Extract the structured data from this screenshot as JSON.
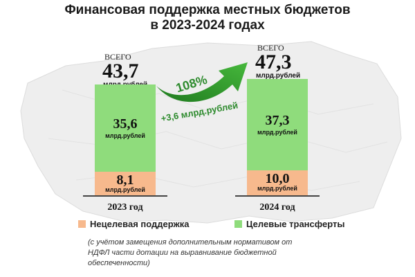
{
  "title_line1": "Финансовая поддержка местных бюджетов",
  "title_line2": "в 2023-2024 годах",
  "totals": [
    {
      "label": "ВСЕГО",
      "value": "43,7",
      "unit": "млрд.рублей"
    },
    {
      "label": "ВСЕГО",
      "value": "47,3",
      "unit": "млрд.рублей"
    }
  ],
  "growth_pct": "108%",
  "growth_delta": "+3,6 млрд.рублей",
  "legend": {
    "nontarget": "Нецелевая поддержка",
    "target": "Целевые трансферты"
  },
  "note": "(с учётом замещения  дополнительным нормативом от НДФЛ части дотации на выравнивание бюджетной обеспеченности)",
  "chart_data": {
    "type": "bar",
    "stacked": true,
    "categories": [
      "2023 год",
      "2024 год"
    ],
    "series": [
      {
        "name": "Нецелевая поддержка",
        "values": [
          8.1,
          10.0
        ],
        "labels": [
          "8,1",
          "10,0"
        ],
        "unit": "млрд.рублей",
        "color": "#f7b98d"
      },
      {
        "name": "Целевые трансферты",
        "values": [
          35.6,
          37.3
        ],
        "labels": [
          "35,6",
          "37,3"
        ],
        "unit": "млрд.рублей",
        "color": "#8fdc7c"
      }
    ],
    "totals": [
      43.7,
      47.3
    ],
    "ylim": [
      0,
      47.3
    ],
    "grid": false,
    "legend_position": "bottom"
  }
}
